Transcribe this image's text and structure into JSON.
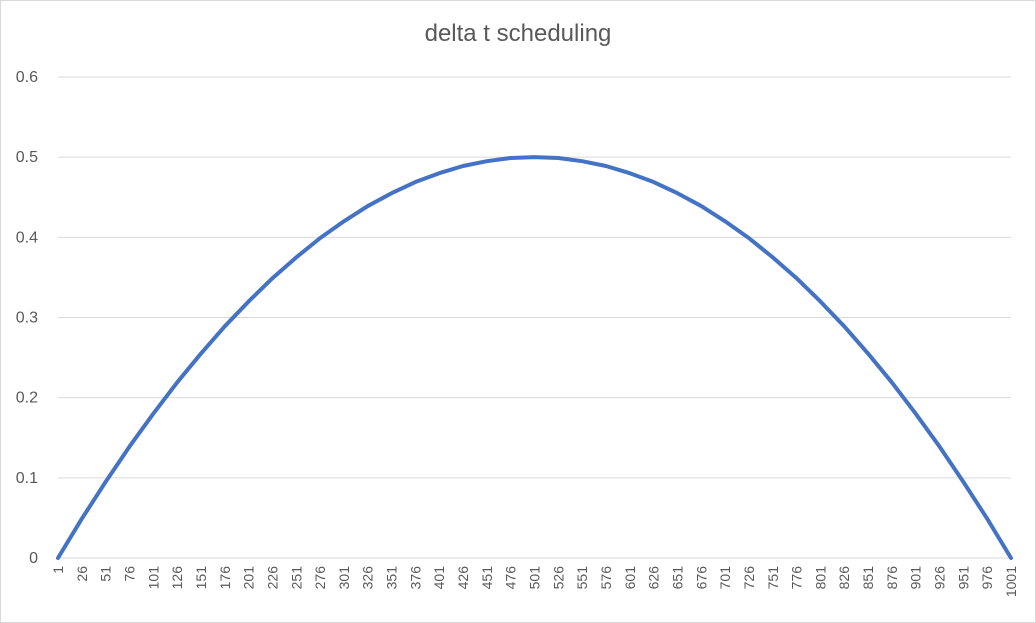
{
  "chart_data": {
    "type": "line",
    "title": "delta t scheduling",
    "xlabel": "",
    "ylabel": "",
    "ylim": [
      0,
      0.6
    ],
    "xlim": [
      1,
      1001
    ],
    "y_ticks": [
      "0",
      "0.1",
      "0.2",
      "0.3",
      "0.4",
      "0.5",
      "0.6"
    ],
    "x_ticks": [
      1,
      26,
      51,
      76,
      101,
      126,
      151,
      176,
      201,
      226,
      251,
      276,
      301,
      326,
      351,
      376,
      401,
      426,
      451,
      476,
      501,
      526,
      551,
      576,
      601,
      626,
      651,
      676,
      701,
      726,
      751,
      776,
      801,
      826,
      851,
      876,
      901,
      926,
      951,
      976,
      1001
    ],
    "grid": true,
    "legend": "none",
    "series": [
      {
        "color": "#4472c4",
        "x": [
          1,
          26,
          51,
          76,
          101,
          126,
          151,
          176,
          201,
          226,
          251,
          276,
          301,
          326,
          351,
          376,
          401,
          426,
          451,
          476,
          501,
          526,
          551,
          576,
          601,
          626,
          651,
          676,
          701,
          726,
          751,
          776,
          801,
          826,
          851,
          876,
          901,
          926,
          951,
          976,
          1001
        ],
        "values": [
          0,
          0.049,
          0.095,
          0.139,
          0.18,
          0.219,
          0.255,
          0.289,
          0.32,
          0.349,
          0.375,
          0.399,
          0.42,
          0.439,
          0.455,
          0.469,
          0.48,
          0.489,
          0.495,
          0.499,
          0.5,
          0.499,
          0.495,
          0.489,
          0.48,
          0.469,
          0.455,
          0.439,
          0.42,
          0.399,
          0.375,
          0.349,
          0.32,
          0.289,
          0.255,
          0.219,
          0.18,
          0.139,
          0.095,
          0.049,
          0
        ]
      }
    ]
  }
}
